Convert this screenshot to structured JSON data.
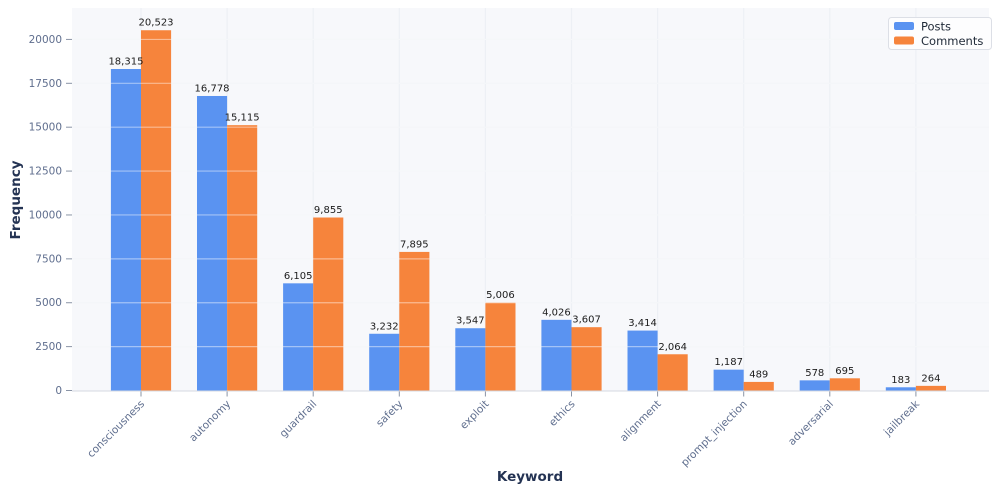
{
  "chart_data": {
    "type": "bar",
    "title": "",
    "xlabel": "Keyword",
    "ylabel": "Frequency",
    "categories": [
      "consciousness",
      "autonomy",
      "guardrail",
      "safety",
      "exploit",
      "ethics",
      "alignment",
      "prompt_injection",
      "adversarial",
      "jailbreak"
    ],
    "series": [
      {
        "name": "Posts",
        "color": "#5A93F1",
        "values": [
          18315,
          16778,
          6105,
          3232,
          3547,
          4026,
          3414,
          1187,
          578,
          183
        ]
      },
      {
        "name": "Comments",
        "color": "#F6843C",
        "values": [
          20523,
          15115,
          9855,
          7895,
          5006,
          3607,
          2064,
          489,
          695,
          264
        ]
      }
    ],
    "ylim": [
      0,
      21790
    ],
    "yticks": [
      0,
      2500,
      5000,
      7500,
      10000,
      12500,
      15000,
      17500,
      20000
    ],
    "grid": true,
    "legend_position": "top-right",
    "value_labels": true,
    "value_label_format": "thousands-comma",
    "x_tick_rotation_deg": 45
  },
  "colors": {
    "posts": "#5A93F1",
    "comments": "#F6843C",
    "plot_background": "#F7F8FB",
    "grid_line": "#EDF0F5",
    "grid_line_over_bars": "rgba(255,255,255,0.45)",
    "axis_line": "#D4D9E2",
    "tick_mark": "#8A94A6",
    "tick_label": "#5F6E8E",
    "axis_title": "#243353",
    "value_label": "#1C1C1C",
    "legend_background": "#FDFDFE",
    "legend_border": "#DCDFE6",
    "legend_text": "#1F2937"
  }
}
